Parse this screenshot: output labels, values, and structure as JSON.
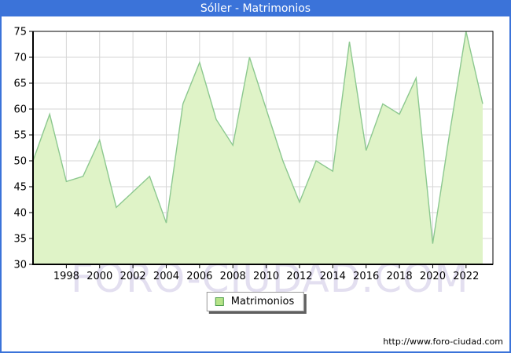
{
  "window": {
    "title": "Sóller - Matrimonios"
  },
  "watermark": "FORO-CIUDAD.COM",
  "legend": {
    "label": "Matrimonios",
    "swatch_fill": "#b6e388",
    "swatch_border": "#4f9d4f"
  },
  "footer": {
    "url": "http://www.foro-ciudad.com"
  },
  "colors": {
    "titlebar": "#3b73d9",
    "area_fill": "#dff3c7",
    "line": "#8cc88f",
    "gridline": "#d6d6d6",
    "axis": "#000000",
    "label_text": "#000000"
  },
  "chart_data": {
    "type": "area",
    "title": "Sóller - Matrimonios",
    "series_name": "Matrimonios",
    "x": [
      1996,
      1997,
      1998,
      1999,
      2000,
      2001,
      2002,
      2003,
      2004,
      2005,
      2006,
      2007,
      2008,
      2009,
      2010,
      2011,
      2012,
      2013,
      2014,
      2015,
      2016,
      2017,
      2018,
      2019,
      2020,
      2021,
      2022,
      2023
    ],
    "values": [
      50,
      59,
      46,
      47,
      54,
      41,
      44,
      47,
      38,
      61,
      69,
      58,
      53,
      70,
      60,
      50,
      42,
      50,
      48,
      73,
      52,
      61,
      59,
      66,
      34,
      55,
      75,
      61
    ],
    "xlabel": "",
    "ylabel": "",
    "ylim": [
      30,
      75
    ],
    "yticks": [
      30,
      35,
      40,
      45,
      50,
      55,
      60,
      65,
      70,
      75
    ],
    "xticks": [
      1998,
      2000,
      2002,
      2004,
      2006,
      2008,
      2010,
      2012,
      2014,
      2016,
      2018,
      2020,
      2022
    ],
    "grid": true,
    "legend_position": "bottom-center"
  }
}
